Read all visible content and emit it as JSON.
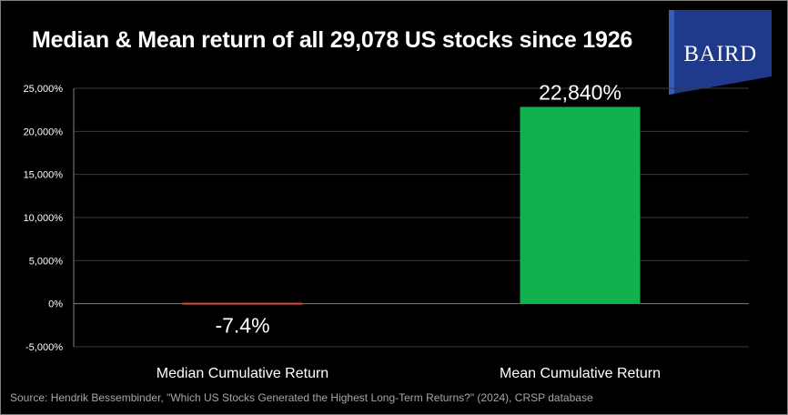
{
  "title": "Median & Mean return of all 29,078 US stocks since 1926",
  "logo_text": "BAIRD",
  "source": "Source: Hendrik Bessembinder, \"Which US Stocks Generated the Highest Long-Term Returns?\" (2024), CRSP database",
  "colors": {
    "background": "#000000",
    "median_bar": "#e0453a",
    "mean_bar": "#12b14f",
    "axis_text": "#ffffff",
    "gridline": "#3a3a3a",
    "logo_blue": "#1f3a8c"
  },
  "chart_data": {
    "type": "bar",
    "title": "Median & Mean return of all 29,078 US stocks since 1926",
    "categories": [
      "Median Cumulative Return",
      "Mean Cumulative Return"
    ],
    "values": [
      -7.4,
      22840
    ],
    "data_labels": [
      "-7.4%",
      "22,840%"
    ],
    "bar_colors": [
      "#e0453a",
      "#12b14f"
    ],
    "ylim": [
      -5000,
      25000
    ],
    "yticks": [
      -5000,
      0,
      5000,
      10000,
      15000,
      20000,
      25000
    ],
    "ytick_labels": [
      "-5,000%",
      "0%",
      "5,000%",
      "10,000%",
      "15,000%",
      "20,000%",
      "25,000%"
    ],
    "xlabel": "",
    "ylabel": "",
    "grid": true
  }
}
